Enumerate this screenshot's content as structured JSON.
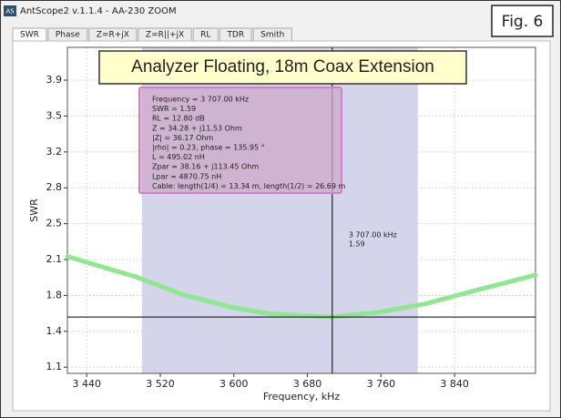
{
  "window": {
    "title": "AntScope2 v.1.1.4 - AA-230 ZOOM",
    "icon": "AS",
    "tabs": [
      "SWR",
      "Phase",
      "Z=R+jX",
      "Z=R||+jX",
      "RL",
      "TDR",
      "Smith"
    ]
  },
  "figure_label": "Fig. 6",
  "chart_data": {
    "type": "line",
    "annotation": "Analyzer Floating, 18m Coax Extension",
    "xlabel": "Frequency, kHz",
    "ylabel": "SWR",
    "xlim": [
      3419,
      3928
    ],
    "ylim": [
      1.04,
      4.22
    ],
    "xticks": [
      {
        "value": 3440,
        "label": "3 440"
      },
      {
        "value": 3520,
        "label": "3 520"
      },
      {
        "value": 3600,
        "label": "3 600"
      },
      {
        "value": 3680,
        "label": "3 680"
      },
      {
        "value": 3760,
        "label": "3 760"
      },
      {
        "value": 3840,
        "label": "3 840"
      }
    ],
    "yticks": [
      1.1,
      {
        "value": 1.45,
        "label": "1.4"
      },
      1.8,
      {
        "value": 2.15,
        "label": "2.1"
      },
      2.5,
      {
        "value": 2.85,
        "label": "2.8"
      },
      3.2,
      {
        "value": 3.55,
        "label": "3.5"
      },
      3.9
    ],
    "grid": true,
    "band": [
      3500,
      3800
    ],
    "band_color": "#c9c9e6",
    "series": [
      {
        "name": "SWR",
        "color": "#8fe88f",
        "x": [
          3419,
          3494,
          3544,
          3600,
          3641,
          3707,
          3760,
          3809,
          3859,
          3928
        ],
        "values": [
          2.18,
          1.98,
          1.81,
          1.68,
          1.62,
          1.59,
          1.64,
          1.72,
          1.84,
          2.0
        ]
      }
    ],
    "marker": {
      "x": 3707,
      "y": 1.59,
      "x_label": "3 707.00 kHz"
    },
    "info_lines": [
      "Frequency = 3 707.00 kHz",
      "SWR = 1.59",
      "RL = 12.80 dB",
      "Z = 34.28 + j11.53 Ohm",
      "|Z| = 36.17 Ohm",
      "|rho| = 0.23, phase = 135.95 °",
      "L = 495.02 nH",
      "Zpar = 38.16 + j113.45 Ohm",
      "Lpar = 4870.75 nH",
      "Cable: length(1/4) = 13.34 m, length(1/2) = 26.69 m"
    ]
  }
}
